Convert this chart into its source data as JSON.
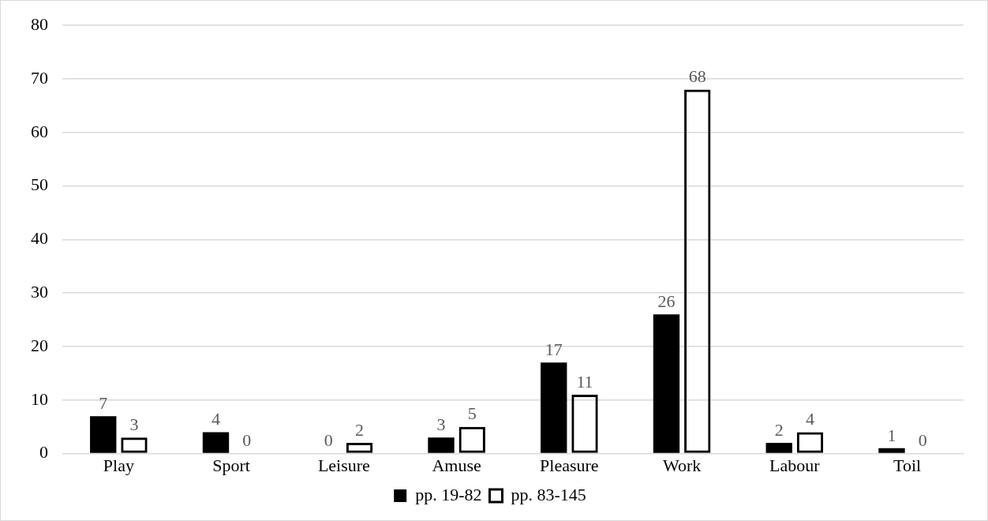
{
  "chart_data": {
    "type": "bar",
    "categories": [
      "Play",
      "Sport",
      "Leisure",
      "Amuse",
      "Pleasure",
      "Work",
      "Labour",
      "Toil"
    ],
    "series": [
      {
        "name": "pp. 19-82",
        "color": "#000000",
        "values": [
          7,
          4,
          0,
          3,
          17,
          26,
          2,
          1
        ]
      },
      {
        "name": "pp. 83-145",
        "color": "#000000",
        "values": [
          3,
          0,
          2,
          5,
          11,
          68,
          4,
          0
        ]
      }
    ],
    "ylim": [
      0,
      80
    ],
    "yticks": [
      0,
      10,
      20,
      30,
      40,
      50,
      60,
      70,
      80
    ],
    "grid": "y",
    "legend": "bottom",
    "data_labels": true
  }
}
